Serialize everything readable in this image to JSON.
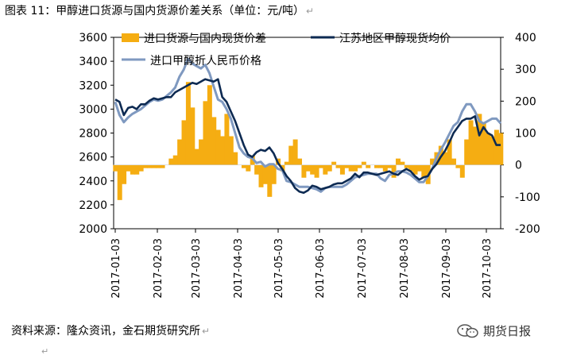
{
  "figure": {
    "title": "图表 11：甲醇进口货源与国内货源价差关系（单位：元/吨）",
    "source": "资料来源：隆众资讯，金石期货研究所",
    "para_mark": "↵",
    "watermark_text": "期货日报"
  },
  "chart_data": {
    "type": "line",
    "legend": [
      "进口货源与国内现货价差",
      "江苏地区甲醇现货均价",
      "进口甲醇折人民币价格"
    ],
    "y_left": {
      "ticks": [
        "3600",
        "3400",
        "3200",
        "3000",
        "2800",
        "2600",
        "2400",
        "2200",
        "2000"
      ],
      "ylim": [
        2000,
        3600
      ]
    },
    "y_right": {
      "ticks": [
        "400",
        "300",
        "200",
        "100",
        "0",
        "-100",
        "-200"
      ],
      "ylim": [
        -200,
        400
      ]
    },
    "x_ticks": [
      "2017-01-03",
      "2017-02-03",
      "2017-03-03",
      "2017-04-03",
      "2017-05-03",
      "2017-06-03",
      "2017-07-03",
      "2017-08-03",
      "2017-09-03",
      "2017-10-03"
    ],
    "series": [
      {
        "name": "进口货源与国内现货价差",
        "kind": "area",
        "axis": "right",
        "color": "#f5ad12",
        "values": [
          -20,
          -110,
          -60,
          -20,
          -30,
          -30,
          -20,
          -10,
          -10,
          -10,
          -10,
          -10,
          0,
          20,
          30,
          80,
          140,
          260,
          180,
          50,
          80,
          200,
          250,
          150,
          110,
          90,
          160,
          90,
          40,
          0,
          -10,
          -20,
          30,
          -30,
          -70,
          -60,
          -100,
          -60,
          20,
          -20,
          10,
          60,
          80,
          20,
          -40,
          -20,
          -30,
          -40,
          -10,
          -30,
          -20,
          10,
          -10,
          -30,
          -10,
          -20,
          -20,
          -10,
          10,
          -10,
          0,
          -10,
          -10,
          -20,
          -10,
          -40,
          20,
          10,
          -10,
          -20,
          -30,
          -20,
          -40,
          -60,
          20,
          40,
          60,
          40,
          80,
          20,
          -10,
          -40,
          80,
          140,
          120,
          160,
          130,
          100,
          90,
          110,
          100
        ]
      },
      {
        "name": "江苏地区甲醇现货均价",
        "kind": "line",
        "axis": "left",
        "color": "#0d2a52",
        "values": [
          3080,
          3060,
          2950,
          3010,
          3020,
          3000,
          3040,
          3040,
          3070,
          3090,
          3080,
          3090,
          3100,
          3100,
          3140,
          3160,
          3180,
          3200,
          3220,
          3210,
          3230,
          3250,
          3240,
          3230,
          3250,
          3100,
          3060,
          2980,
          2900,
          2800,
          2700,
          2620,
          2600,
          2640,
          2660,
          2650,
          2680,
          2630,
          2550,
          2500,
          2440,
          2400,
          2340,
          2310,
          2300,
          2320,
          2360,
          2350,
          2330,
          2340,
          2350,
          2370,
          2380,
          2380,
          2400,
          2420,
          2460,
          2430,
          2470,
          2470,
          2460,
          2450,
          2460,
          2470,
          2480,
          2460,
          2450,
          2480,
          2500,
          2480,
          2440,
          2410,
          2430,
          2440,
          2500,
          2540,
          2600,
          2650,
          2720,
          2800,
          2850,
          2900,
          2920,
          2920,
          2940,
          2780,
          2850,
          2800,
          2780,
          2700,
          2700
        ]
      },
      {
        "name": "进口甲醇折人民币价格",
        "kind": "line",
        "axis": "left",
        "color": "#7f99c0",
        "values": [
          3060,
          2950,
          2890,
          2930,
          2960,
          2980,
          3000,
          3030,
          3060,
          3080,
          3070,
          3080,
          3110,
          3140,
          3180,
          3270,
          3330,
          3420,
          3380,
          3360,
          3340,
          3370,
          3300,
          3190,
          3080,
          3060,
          3000,
          2920,
          2800,
          2680,
          2630,
          2600,
          2590,
          2550,
          2560,
          2520,
          2540,
          2540,
          2500,
          2490,
          2400,
          2390,
          2370,
          2350,
          2350,
          2350,
          2340,
          2330,
          2310,
          2340,
          2350,
          2350,
          2350,
          2350,
          2370,
          2400,
          2430,
          2440,
          2450,
          2460,
          2460,
          2460,
          2420,
          2400,
          2450,
          2460,
          2480,
          2480,
          2470,
          2450,
          2420,
          2390,
          2390,
          2440,
          2500,
          2590,
          2660,
          2720,
          2790,
          2860,
          2890,
          2980,
          3040,
          3040,
          2980,
          2900,
          2880,
          2900,
          2920,
          2920,
          2880
        ]
      }
    ]
  }
}
